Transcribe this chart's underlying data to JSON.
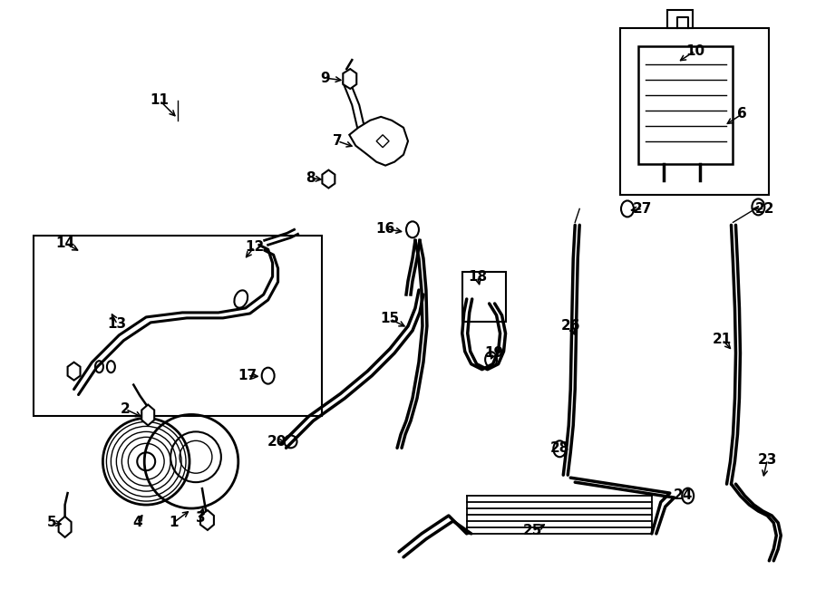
{
  "bg_color": "#ffffff",
  "line_color": "#000000",
  "label_fontsize": 11,
  "fig_width": 9.0,
  "fig_height": 6.61
}
